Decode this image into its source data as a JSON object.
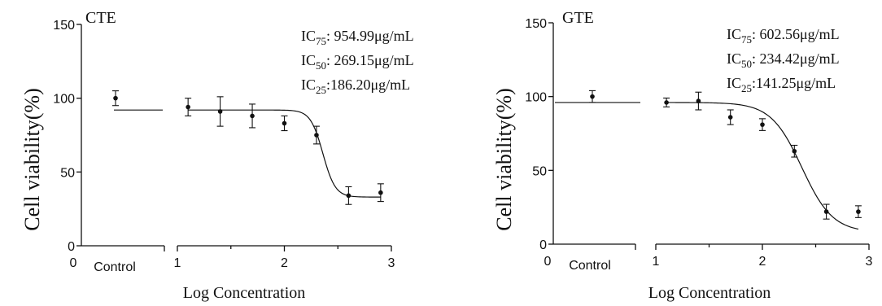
{
  "chart_data": [
    {
      "type": "scatter",
      "title": "CTE",
      "xlabel": "Log Concentration",
      "ylabel": "Cell viability(%)",
      "ylim": [
        0,
        150
      ],
      "yticks": [
        "0",
        "50",
        "100",
        "150"
      ],
      "xticks": [
        "0",
        "1",
        "2",
        "3"
      ],
      "control_label": "Control",
      "annotations": [
        {
          "prefix": "IC",
          "sub": "75",
          "text": ": 954.99μg/mL"
        },
        {
          "prefix": "IC",
          "sub": "50",
          "text": ": 269.15μg/mL"
        },
        {
          "prefix": "IC",
          "sub": "25",
          "text": ":186.20μg/mL"
        }
      ],
      "control": {
        "x": 0.4,
        "y": 100,
        "err": 5
      },
      "control_fit": 92,
      "points": [
        {
          "x": 1.1,
          "y": 94,
          "err": 6
        },
        {
          "x": 1.4,
          "y": 91,
          "err": 10
        },
        {
          "x": 1.7,
          "y": 88,
          "err": 8
        },
        {
          "x": 2.0,
          "y": 83,
          "err": 5
        },
        {
          "x": 2.3,
          "y": 75,
          "err": 6
        },
        {
          "x": 2.6,
          "y": 34,
          "err": 6
        },
        {
          "x": 2.9,
          "y": 36,
          "err": 6
        }
      ],
      "fit": {
        "top": 92,
        "bottom": 33,
        "logIC50": 2.36,
        "hill": 7.5,
        "xmin": 1.1,
        "xmax": 2.9
      },
      "grid": false,
      "legend": "none"
    },
    {
      "type": "scatter",
      "title": "GTE",
      "xlabel": "Log Concentration",
      "ylabel": "Cell viability(%)",
      "ylim": [
        0,
        150
      ],
      "yticks": [
        "0",
        "50",
        "100",
        "150"
      ],
      "xticks": [
        "0",
        "1",
        "2",
        "3"
      ],
      "control_label": "Control",
      "annotations": [
        {
          "prefix": "IC",
          "sub": "75",
          "text": ": 602.56μg/mL"
        },
        {
          "prefix": "IC",
          "sub": "50",
          "text": ": 234.42μg/mL"
        },
        {
          "prefix": "IC",
          "sub": "25",
          "text": ":141.25μg/mL"
        }
      ],
      "control": {
        "x": 0.4,
        "y": 100,
        "err": 4
      },
      "control_fit": 96,
      "points": [
        {
          "x": 1.1,
          "y": 96,
          "err": 3
        },
        {
          "x": 1.4,
          "y": 97,
          "err": 6
        },
        {
          "x": 1.7,
          "y": 86,
          "err": 5
        },
        {
          "x": 2.0,
          "y": 81,
          "err": 4
        },
        {
          "x": 2.3,
          "y": 63,
          "err": 4
        },
        {
          "x": 2.6,
          "y": 22,
          "err": 5
        },
        {
          "x": 2.9,
          "y": 22,
          "err": 4
        }
      ],
      "fit": {
        "top": 96,
        "bottom": 8,
        "logIC50": 2.37,
        "hill": 3.0,
        "xmin": 1.1,
        "xmax": 2.9
      },
      "grid": false,
      "legend": "none"
    }
  ]
}
